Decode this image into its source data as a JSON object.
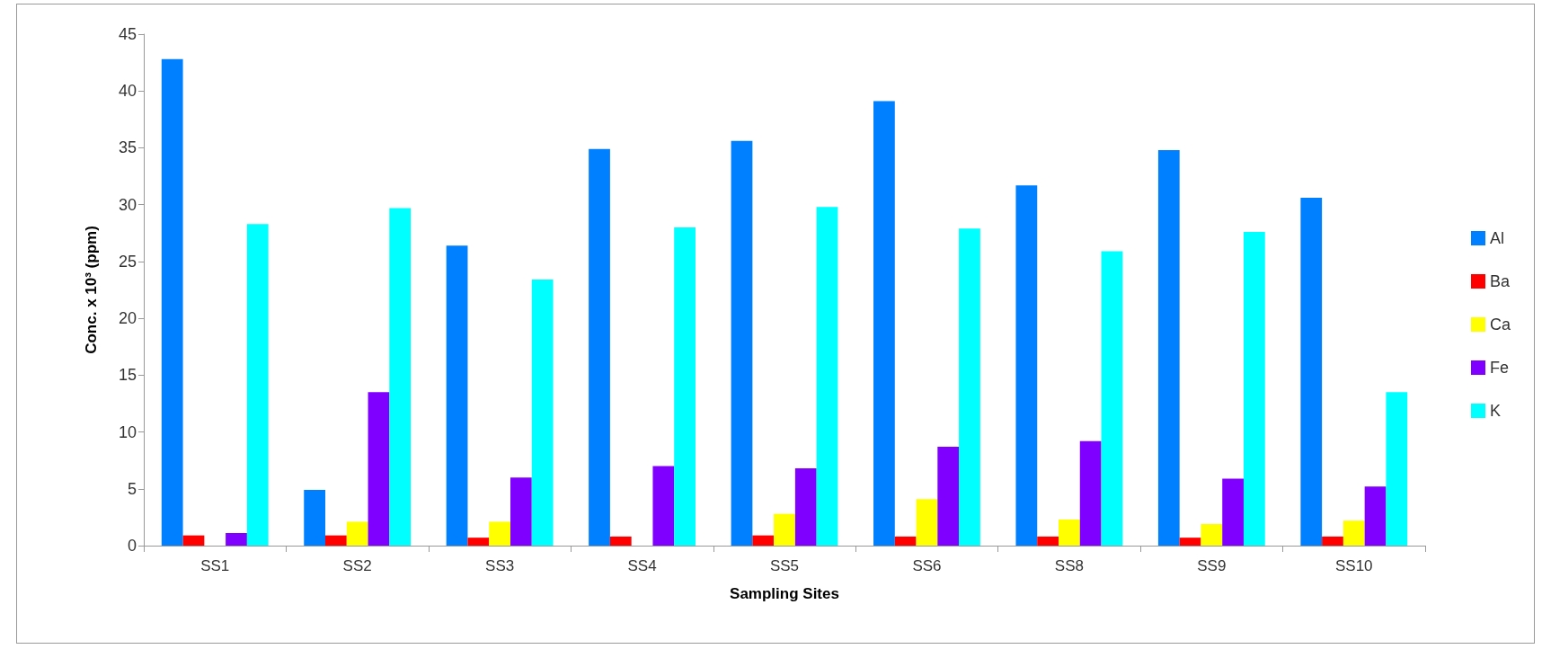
{
  "chart_data": {
    "type": "bar",
    "xlabel": "Sampling Sites",
    "ylabel": "Conc. x 10³ (ppm)",
    "categories": [
      "SS1",
      "SS2",
      "SS3",
      "SS4",
      "SS5",
      "SS6",
      "SS8",
      "SS9",
      "SS10"
    ],
    "series": [
      {
        "name": "Al",
        "color": "#0080ff",
        "values": [
          42.8,
          4.9,
          26.4,
          34.9,
          35.6,
          39.1,
          31.7,
          34.8,
          30.6
        ]
      },
      {
        "name": "Ba",
        "color": "#ff0000",
        "values": [
          0.9,
          0.9,
          0.7,
          0.8,
          0.9,
          0.8,
          0.8,
          0.7,
          0.8
        ]
      },
      {
        "name": "Ca",
        "color": "#ffff00",
        "values": [
          null,
          2.1,
          2.1,
          null,
          2.8,
          4.1,
          2.3,
          1.9,
          2.2
        ]
      },
      {
        "name": "Fe",
        "color": "#8000ff",
        "values": [
          1.1,
          13.5,
          6.0,
          7.0,
          6.8,
          8.7,
          9.2,
          5.9,
          5.2
        ]
      },
      {
        "name": "K",
        "color": "#00ffff",
        "values": [
          28.3,
          29.7,
          23.4,
          28.0,
          29.8,
          27.9,
          25.9,
          27.6,
          13.5
        ]
      }
    ],
    "ylim": [
      0,
      45
    ],
    "yticks": [
      0,
      5,
      10,
      15,
      20,
      25,
      30,
      35,
      40,
      45
    ],
    "grid": false,
    "legend": "right"
  }
}
